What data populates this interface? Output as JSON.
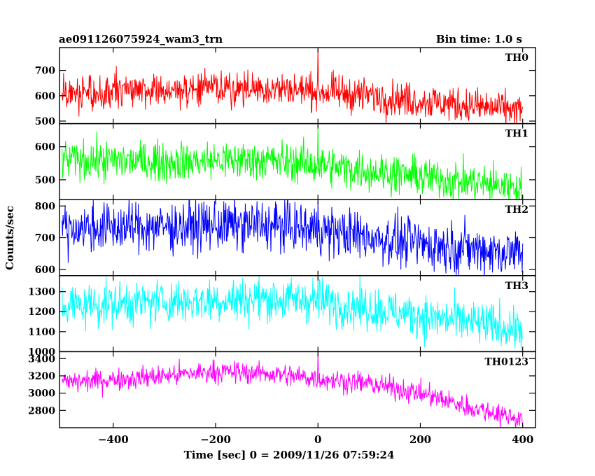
{
  "header": {
    "title": "ae091126075924_wam3_trn",
    "bin_time": "Bin time: 1.0 s"
  },
  "chart_data": {
    "type": "line",
    "xlabel": "Time [sec] 0 = 2009/11/26 07:59:24",
    "ylabel": "Counts/sec",
    "xlim": [
      -505,
      425
    ],
    "x_ticks": [
      -400,
      -200,
      0,
      200,
      400
    ],
    "x_tick_labels": [
      "−400",
      "−200",
      "0",
      "200",
      "400"
    ],
    "x_range_data": [
      -500,
      400
    ],
    "bin_seconds": 1.0,
    "panels": [
      {
        "name": "TH0",
        "color": "#ff0000",
        "ylim": [
          490,
          790
        ],
        "y_ticks": [
          500,
          600,
          700
        ],
        "y_tick_labels": [
          "500",
          "600",
          "700"
        ],
        "trend_x": [
          -500,
          -300,
          -100,
          0,
          200,
          400
        ],
        "trend_y": [
          600,
          625,
          630,
          620,
          580,
          540
        ],
        "noise": 35,
        "spike": {
          "x": 0,
          "y": 790
        }
      },
      {
        "name": "TH1",
        "color": "#00ff00",
        "ylim": [
          440,
          670
        ],
        "y_ticks": [
          500,
          600
        ],
        "y_tick_labels": [
          "500",
          "600"
        ],
        "trend_x": [
          -500,
          -300,
          -100,
          0,
          200,
          400
        ],
        "trend_y": [
          560,
          555,
          560,
          545,
          510,
          475
        ],
        "noise": 30,
        "spike": {
          "x": 0,
          "y": 665
        }
      },
      {
        "name": "TH2",
        "color": "#0000ff",
        "ylim": [
          580,
          820
        ],
        "y_ticks": [
          600,
          700,
          800
        ],
        "y_tick_labels": [
          "600",
          "700",
          "800"
        ],
        "trend_x": [
          -500,
          -300,
          -100,
          0,
          200,
          400
        ],
        "trend_y": [
          730,
          735,
          740,
          725,
          680,
          650
        ],
        "noise": 40,
        "spike": {
          "x": 0,
          "y": 815
        }
      },
      {
        "name": "TH3",
        "color": "#00ffff",
        "ylim": [
          1000,
          1380
        ],
        "y_ticks": [
          1000,
          1100,
          1200,
          1300
        ],
        "y_tick_labels": [
          "1000",
          "1100",
          "1200",
          "1300"
        ],
        "trend_x": [
          -500,
          -300,
          -100,
          0,
          200,
          400
        ],
        "trend_y": [
          1230,
          1250,
          1265,
          1255,
          1180,
          1110
        ],
        "noise": 55,
        "spike": {
          "x": 0,
          "y": 1370
        }
      },
      {
        "name": "TH0123",
        "color": "#ff00ff",
        "ylim": [
          2600,
          3480
        ],
        "y_ticks": [
          2800,
          3000,
          3200,
          3400
        ],
        "y_tick_labels": [
          "2800",
          "3000",
          "3200",
          "3400"
        ],
        "trend_x": [
          -500,
          -300,
          -200,
          -100,
          0,
          100,
          200,
          300,
          400
        ],
        "trend_y": [
          3120,
          3200,
          3250,
          3230,
          3170,
          3110,
          3000,
          2830,
          2700
        ],
        "noise": 65,
        "spike": {
          "x": 0,
          "y": 3470
        }
      }
    ]
  }
}
